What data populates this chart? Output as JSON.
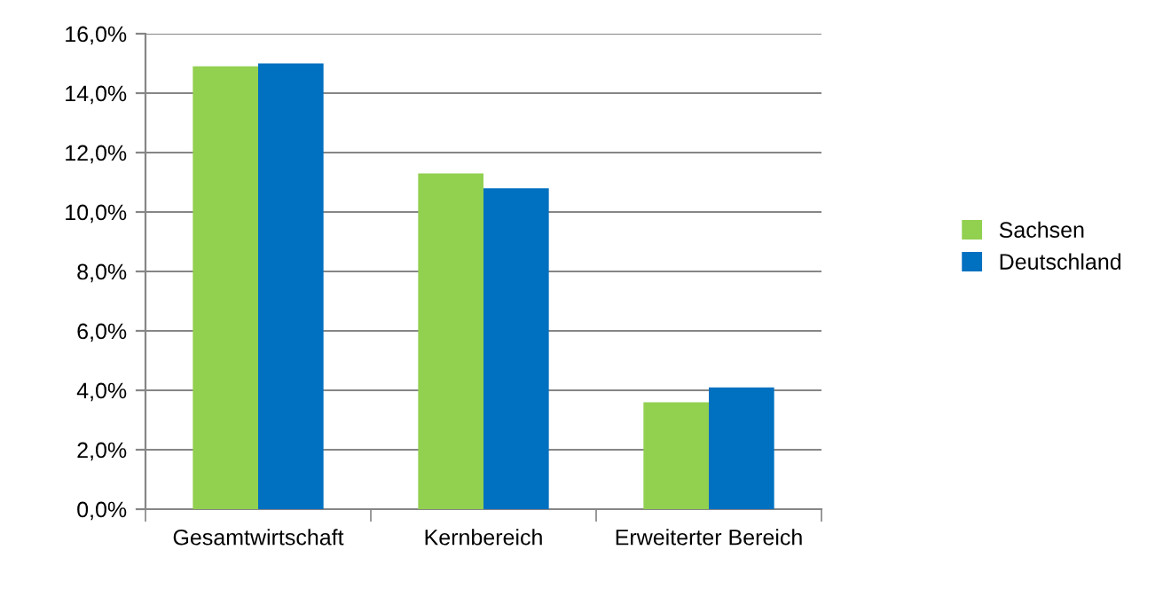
{
  "chart_data": {
    "type": "bar",
    "categories": [
      "Gesamtwirtschaft",
      "Kernbereich",
      "Erweiterter Bereich"
    ],
    "series": [
      {
        "name": "Sachsen",
        "color": "#92d050",
        "values": [
          14.9,
          11.3,
          3.6
        ]
      },
      {
        "name": "Deutschland",
        "color": "#0070c0",
        "values": [
          15.0,
          10.8,
          4.1
        ]
      }
    ],
    "ylim": [
      0,
      16
    ],
    "yticks": [
      {
        "value": 0,
        "label": "0,0%"
      },
      {
        "value": 2,
        "label": "2,0%"
      },
      {
        "value": 4,
        "label": "4,0%"
      },
      {
        "value": 6,
        "label": "6,0%"
      },
      {
        "value": 8,
        "label": "8,0%"
      },
      {
        "value": 10,
        "label": "10,0%"
      },
      {
        "value": 12,
        "label": "12,0%"
      },
      {
        "value": 14,
        "label": "14,0%"
      },
      {
        "value": 16,
        "label": "16,0%"
      }
    ],
    "grid": "y",
    "legend": "right"
  }
}
